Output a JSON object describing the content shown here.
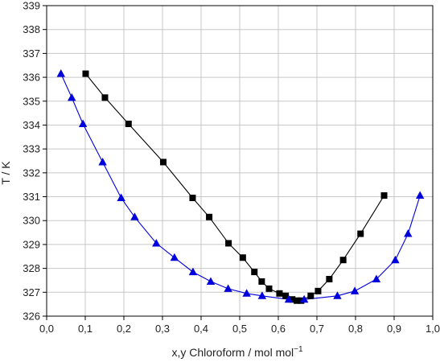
{
  "chart_data": {
    "type": "scatter",
    "xlabel": "x,y Chloroform / mol mol",
    "xlabel_sup": "−1",
    "ylabel": "T / K",
    "xlim": [
      0.0,
      1.0
    ],
    "ylim": [
      326,
      339
    ],
    "grid": true,
    "x_ticks": [
      "0,0",
      "0,1",
      "0,2",
      "0,3",
      "0,4",
      "0,5",
      "0,6",
      "0,7",
      "0,8",
      "0,9",
      "1,0"
    ],
    "y_ticks": [
      "326",
      "327",
      "328",
      "329",
      "330",
      "331",
      "332",
      "333",
      "334",
      "335",
      "336",
      "337",
      "338",
      "339"
    ],
    "series": [
      {
        "marker": "square",
        "color": "#000000",
        "x": [
          0.101,
          0.151,
          0.212,
          0.302,
          0.378,
          0.421,
          0.471,
          0.508,
          0.538,
          0.557,
          0.576,
          0.603,
          0.619,
          0.636,
          0.648,
          0.659,
          0.684,
          0.703,
          0.732,
          0.768,
          0.813,
          0.874
        ],
        "y": [
          336.15,
          335.15,
          334.05,
          332.45,
          330.95,
          330.15,
          329.05,
          328.45,
          327.85,
          327.45,
          327.15,
          326.95,
          326.85,
          326.7,
          326.65,
          326.65,
          326.85,
          327.05,
          327.55,
          328.35,
          329.45,
          331.05
        ]
      },
      {
        "marker": "triangle",
        "color": "#0000dd",
        "x": [
          0.037,
          0.065,
          0.094,
          0.145,
          0.193,
          0.228,
          0.284,
          0.331,
          0.379,
          0.425,
          0.47,
          0.518,
          0.558,
          0.627,
          0.667,
          0.753,
          0.798,
          0.854,
          0.903,
          0.936,
          0.967
        ],
        "y": [
          336.15,
          335.15,
          334.05,
          332.45,
          330.95,
          330.15,
          329.05,
          328.45,
          327.85,
          327.45,
          327.15,
          326.95,
          326.85,
          326.7,
          326.7,
          326.85,
          327.05,
          327.55,
          328.35,
          329.45,
          331.05
        ]
      }
    ]
  }
}
